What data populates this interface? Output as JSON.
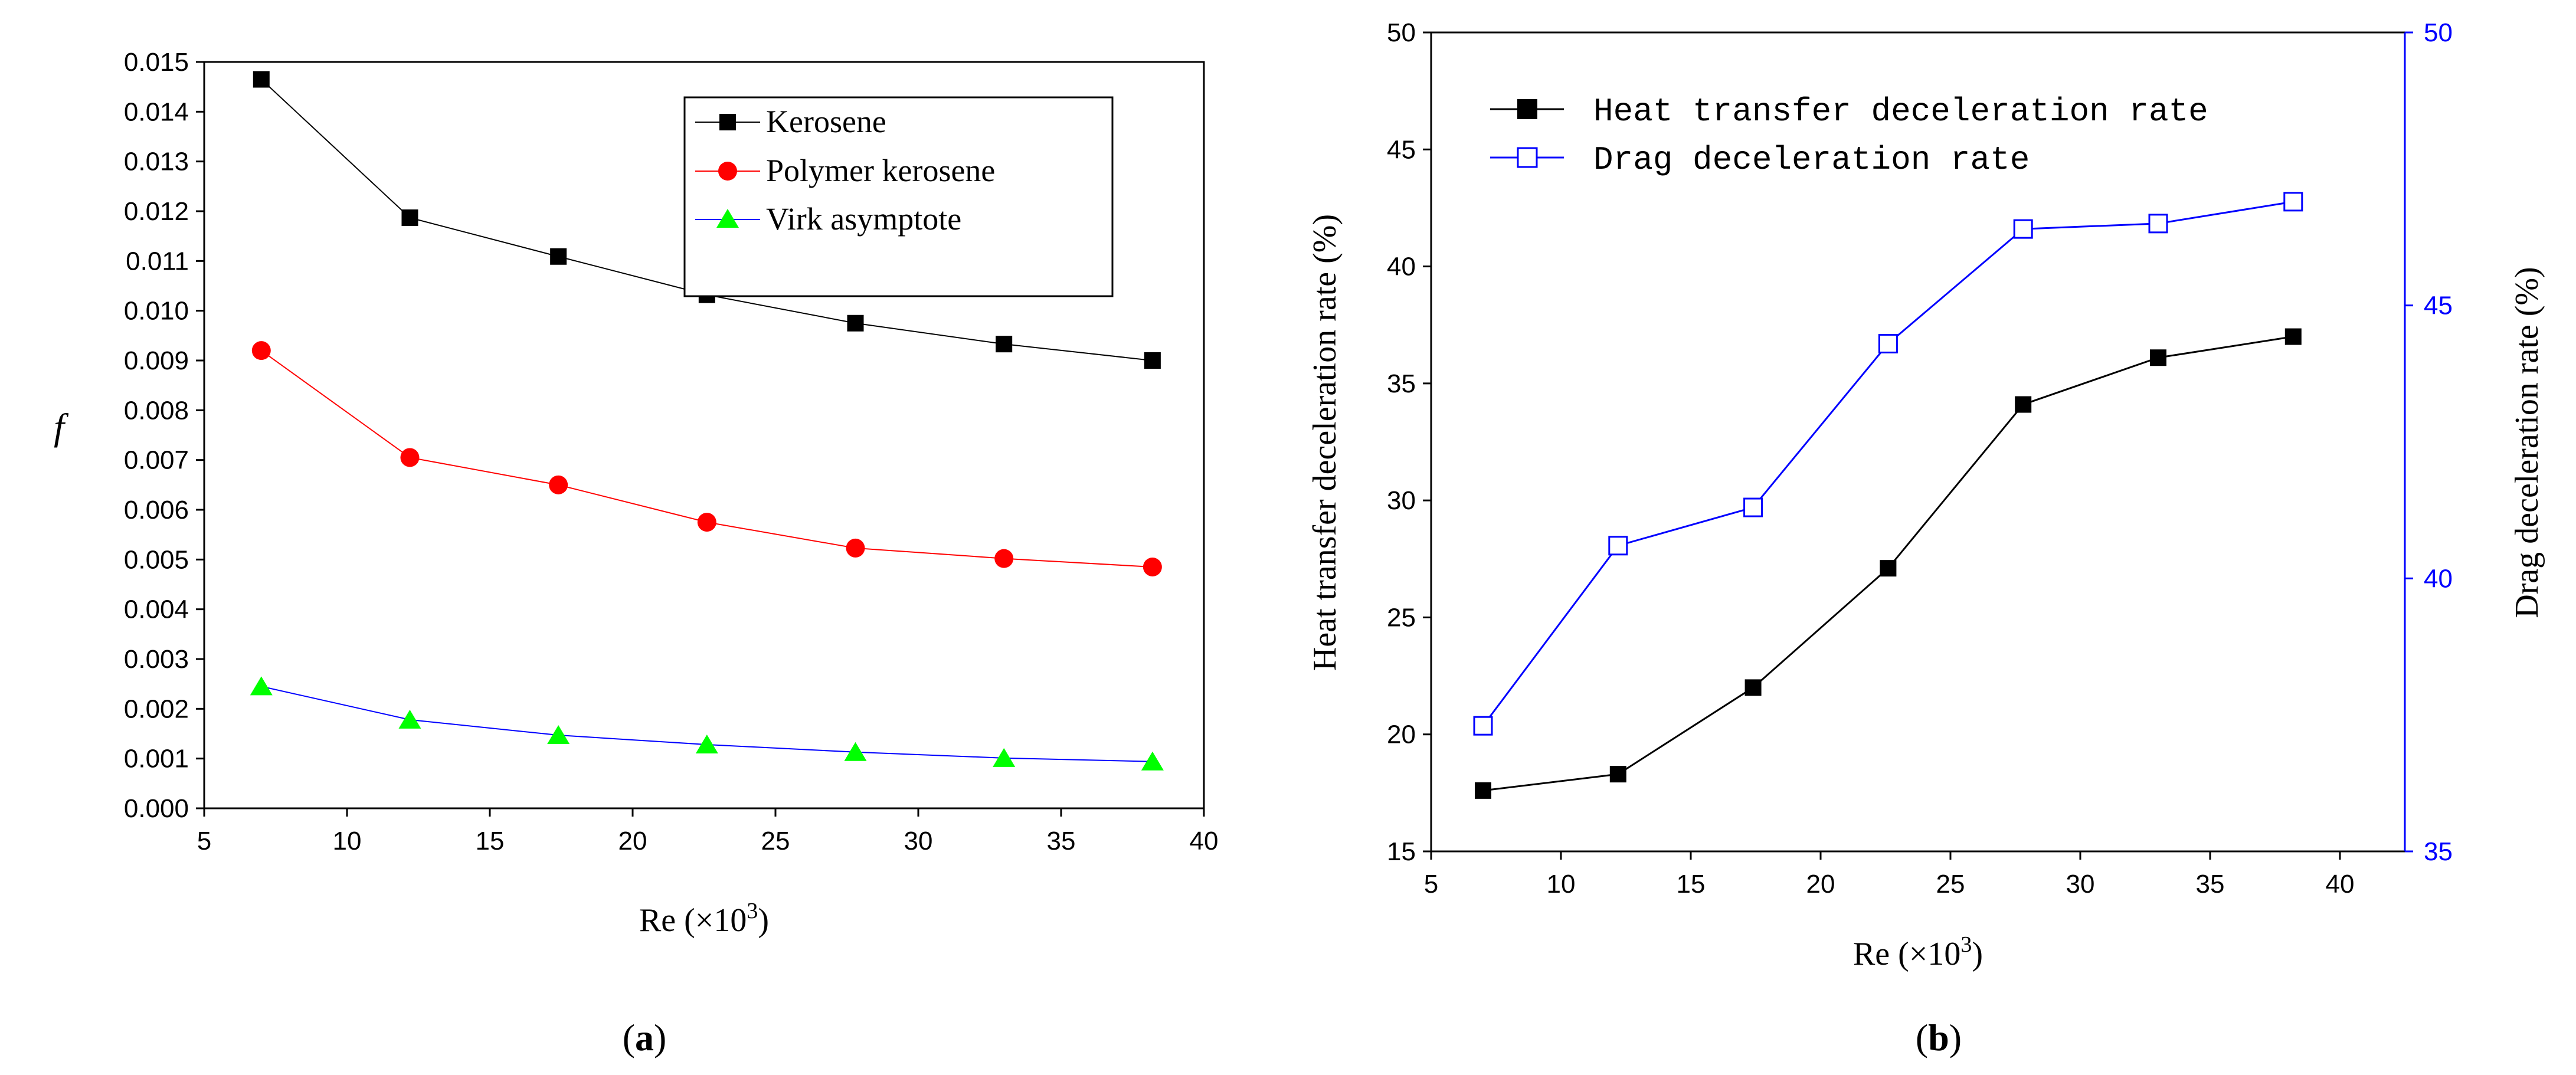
{
  "chart_data": [
    {
      "type": "line",
      "panel_label": "(a)",
      "panel_letter": "a",
      "title": "",
      "xlabel": "Re (×10",
      "xlabel_sup": "3",
      "xlabel_close": ")",
      "ylabel": "f",
      "xlim": [
        5,
        40
      ],
      "ylim": [
        0,
        0.015
      ],
      "x_ticks": [
        "5",
        "10",
        "15",
        "20",
        "25",
        "30",
        "35",
        "40"
      ],
      "y_ticks": [
        "0.000",
        "0.001",
        "0.002",
        "0.003",
        "0.004",
        "0.005",
        "0.006",
        "0.007",
        "0.008",
        "0.009",
        "0.010",
        "0.011",
        "0.012",
        "0.013",
        "0.014",
        "0.015"
      ],
      "legend_position": "top-right",
      "x": [
        7.0,
        12.2,
        17.4,
        22.6,
        27.8,
        33.0,
        38.2
      ],
      "series": [
        {
          "name": "Kerosene",
          "color": "#000000",
          "marker": "square-filled",
          "values": [
            0.01465,
            0.01187,
            0.01109,
            0.01032,
            0.00975,
            0.00933,
            0.009
          ]
        },
        {
          "name": "Polymer kerosene",
          "color": "#ff0000",
          "marker": "circle-filled",
          "values": [
            0.0092,
            0.00705,
            0.0065,
            0.00575,
            0.00523,
            0.00502,
            0.00485
          ]
        },
        {
          "name": "Virk asymptote",
          "color": "#0000ff",
          "marker_color": "#00ff00",
          "marker": "triangle-filled",
          "values": [
            0.00245,
            0.00178,
            0.00147,
            0.00128,
            0.00113,
            0.00101,
            0.00094
          ]
        }
      ]
    },
    {
      "type": "line",
      "panel_label": "(b)",
      "panel_letter": "b",
      "title": "",
      "xlabel": "Re (×10",
      "xlabel_sup": "3",
      "xlabel_close": ")",
      "ylabel": "Heat transfer deceleration rate (%)",
      "y2label": "Drag deceleration rate (%)",
      "xlim": [
        5,
        42.5
      ],
      "ylim": [
        15,
        50
      ],
      "y2lim": [
        35,
        50
      ],
      "x_ticks": [
        "5",
        "10",
        "15",
        "20",
        "25",
        "30",
        "35",
        "40"
      ],
      "y_ticks": [
        "15",
        "20",
        "25",
        "30",
        "35",
        "40",
        "45",
        "50"
      ],
      "y2_ticks": [
        "35",
        "40",
        "45",
        "50"
      ],
      "legend_position": "top-left",
      "x": [
        7.0,
        12.2,
        17.4,
        22.6,
        27.8,
        33.0,
        38.2
      ],
      "series": [
        {
          "name": "Heat transfer deceleration rate",
          "axis": "left",
          "color": "#000000",
          "marker": "square-filled",
          "values": [
            17.6,
            18.3,
            22.0,
            27.1,
            34.1,
            36.1,
            37.0
          ]
        },
        {
          "name": "Drag deceleration rate",
          "axis": "right",
          "color": "#0000ff",
          "marker": "square-open",
          "values": [
            37.3,
            40.6,
            41.3,
            44.3,
            46.4,
            46.5,
            46.9
          ]
        }
      ]
    }
  ]
}
